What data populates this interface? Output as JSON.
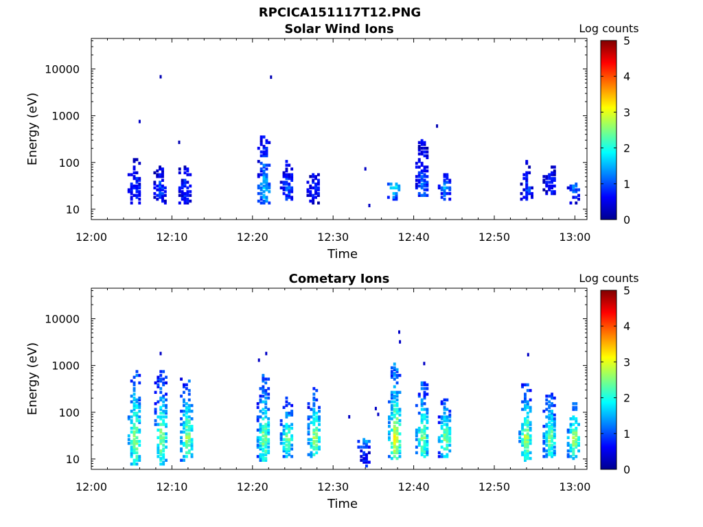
{
  "figure": {
    "title": "RPCICA151117T12.PNG"
  },
  "colormap": [
    "#00008f",
    "#0000ff",
    "#0080ff",
    "#00ffff",
    "#80ff80",
    "#ffff00",
    "#ff8000",
    "#ff0000",
    "#800000"
  ],
  "chart_data": [
    {
      "type": "heatmap",
      "title": "Solar Wind Ions",
      "xlabel": "Time",
      "ylabel": "Energy (eV)",
      "x_ticks": [
        "12:00",
        "12:10",
        "12:20",
        "12:30",
        "12:40",
        "12:50",
        "13:00"
      ],
      "x_range_minutes": [
        0,
        61.5
      ],
      "y_scale": "log",
      "y_range": [
        6,
        45000
      ],
      "y_ticks": [
        "10",
        "100",
        "1000",
        "10000"
      ],
      "colorbar": {
        "label": "Log counts",
        "range": [
          0,
          5
        ],
        "ticks": [
          "0",
          "1",
          "2",
          "3",
          "4",
          "5"
        ]
      },
      "bursts": [
        {
          "t": 5.3,
          "e_low": 12,
          "e_high": 110,
          "peak": 1.0
        },
        {
          "t": 8.5,
          "e_low": 12,
          "e_high": 80,
          "peak": 1.1
        },
        {
          "t": 11.6,
          "e_low": 12,
          "e_high": 75,
          "peak": 1.0
        },
        {
          "t": 21.4,
          "e_low": 12,
          "e_high": 350,
          "peak": 1.8
        },
        {
          "t": 24.2,
          "e_low": 15,
          "e_high": 100,
          "peak": 1.2
        },
        {
          "t": 27.5,
          "e_low": 12,
          "e_high": 55,
          "peak": 0.9
        },
        {
          "t": 37.5,
          "e_low": 15,
          "e_high": 35,
          "peak": 2.2
        },
        {
          "t": 41.0,
          "e_low": 18,
          "e_high": 300,
          "peak": 1.3
        },
        {
          "t": 43.8,
          "e_low": 15,
          "e_high": 55,
          "peak": 1.6
        },
        {
          "t": 54.0,
          "e_low": 15,
          "e_high": 100,
          "peak": 1.0
        },
        {
          "t": 56.8,
          "e_low": 20,
          "e_high": 80,
          "peak": 0.9
        },
        {
          "t": 59.8,
          "e_low": 12,
          "e_high": 35,
          "peak": 1.3
        }
      ],
      "isolated_points": [
        {
          "t": 8.6,
          "e": 6800,
          "v": 0.2
        },
        {
          "t": 22.3,
          "e": 6700,
          "v": 0.2
        },
        {
          "t": 6.0,
          "e": 750,
          "v": 0.3
        },
        {
          "t": 10.9,
          "e": 270,
          "v": 0.2
        },
        {
          "t": 42.9,
          "e": 600,
          "v": 0.2
        },
        {
          "t": 34.0,
          "e": 73,
          "v": 0.3
        },
        {
          "t": 34.5,
          "e": 12,
          "v": 0.3
        }
      ]
    },
    {
      "type": "heatmap",
      "title": "Cometary Ions",
      "xlabel": "Time",
      "ylabel": "Energy (eV)",
      "x_ticks": [
        "12:00",
        "12:10",
        "12:20",
        "12:30",
        "12:40",
        "12:50",
        "13:00"
      ],
      "x_range_minutes": [
        0,
        61.5
      ],
      "y_scale": "log",
      "y_range": [
        6,
        45000
      ],
      "y_ticks": [
        "10",
        "100",
        "1000",
        "10000"
      ],
      "colorbar": {
        "label": "Log counts",
        "range": [
          0,
          5
        ],
        "ticks": [
          "0",
          "1",
          "2",
          "3",
          "4",
          "5"
        ]
      },
      "bursts": [
        {
          "t": 5.3,
          "e_low": 7,
          "e_high": 700,
          "peak": 2.9
        },
        {
          "t": 8.6,
          "e_low": 7,
          "e_high": 700,
          "peak": 2.8
        },
        {
          "t": 11.8,
          "e_low": 8,
          "e_high": 500,
          "peak": 2.9
        },
        {
          "t": 21.3,
          "e_low": 8,
          "e_high": 600,
          "peak": 2.8
        },
        {
          "t": 24.2,
          "e_low": 10,
          "e_high": 200,
          "peak": 2.7
        },
        {
          "t": 27.6,
          "e_low": 10,
          "e_high": 350,
          "peak": 2.9
        },
        {
          "t": 33.8,
          "e_low": 6,
          "e_high": 25,
          "peak": 1.8
        },
        {
          "t": 37.6,
          "e_low": 8,
          "e_high": 1000,
          "peak": 3.3
        },
        {
          "t": 41.0,
          "e_low": 10,
          "e_high": 450,
          "peak": 2.8
        },
        {
          "t": 43.8,
          "e_low": 10,
          "e_high": 200,
          "peak": 2.8
        },
        {
          "t": 53.8,
          "e_low": 8,
          "e_high": 400,
          "peak": 3.0
        },
        {
          "t": 56.8,
          "e_low": 9,
          "e_high": 250,
          "peak": 2.7
        },
        {
          "t": 59.8,
          "e_low": 9,
          "e_high": 150,
          "peak": 3.0
        }
      ],
      "isolated_points": [
        {
          "t": 8.6,
          "e": 1800,
          "v": 0.3
        },
        {
          "t": 20.8,
          "e": 1300,
          "v": 0.3
        },
        {
          "t": 21.7,
          "e": 1800,
          "v": 0.3
        },
        {
          "t": 38.2,
          "e": 5200,
          "v": 0.3
        },
        {
          "t": 38.3,
          "e": 3200,
          "v": 0.3
        },
        {
          "t": 41.3,
          "e": 1100,
          "v": 0.3
        },
        {
          "t": 54.2,
          "e": 1700,
          "v": 0.3
        },
        {
          "t": 32.0,
          "e": 80,
          "v": 0.3
        },
        {
          "t": 35.3,
          "e": 120,
          "v": 0.3
        },
        {
          "t": 35.6,
          "e": 90,
          "v": 0.3
        }
      ]
    }
  ]
}
